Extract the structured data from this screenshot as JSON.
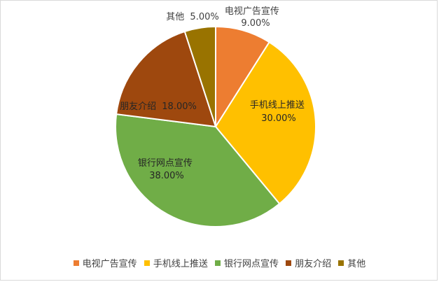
{
  "chart_data": {
    "type": "pie",
    "title": "",
    "slices": [
      {
        "label": "电视广告宣传",
        "value": 9.0,
        "display": "9.00%",
        "color": "#ED7D31"
      },
      {
        "label": "手机线上推送",
        "value": 30.0,
        "display": "30.00%",
        "color": "#FFC000"
      },
      {
        "label": "银行网点宣传",
        "value": 38.0,
        "display": "38.00%",
        "color": "#70AD47"
      },
      {
        "label": "朋友介绍",
        "value": 18.0,
        "display": "18.00%",
        "color": "#9E480E"
      },
      {
        "label": "其他",
        "value": 5.0,
        "display": "5.00%",
        "color": "#997300"
      }
    ],
    "legend_position": "bottom",
    "start_angle": "12 o'clock, clockwise"
  }
}
